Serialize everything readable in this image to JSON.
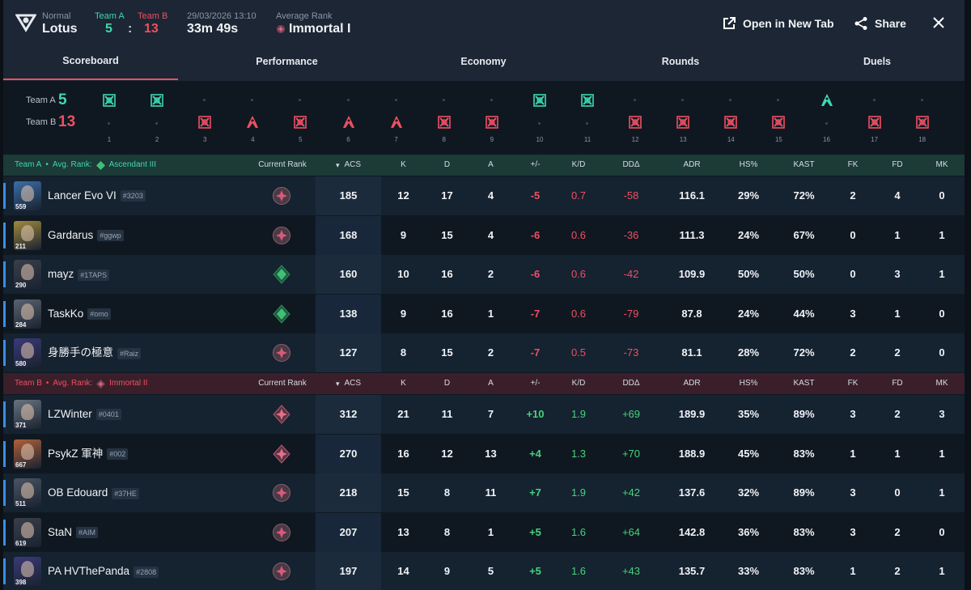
{
  "match": {
    "mode": "Normal",
    "map": "Lotus",
    "team_a_label": "Team A",
    "team_b_label": "Team B",
    "team_a_score": "5",
    "team_b_score": "13",
    "score_sep": ":",
    "datetime": "29/03/2026 13:10",
    "duration": "33m 49s",
    "avg_rank_label": "Average Rank",
    "avg_rank": "Immortal I"
  },
  "actions": {
    "open_tab": "Open in New Tab",
    "share": "Share"
  },
  "tabs": [
    "Scoreboard",
    "Performance",
    "Economy",
    "Rounds",
    "Duels"
  ],
  "timeline": {
    "team_a_label": "Team A",
    "team_b_label": "Team B",
    "team_a_score": "5",
    "team_b_score": "13",
    "rounds": [
      {
        "n": "1",
        "winner": "A",
        "type": "elim"
      },
      {
        "n": "2",
        "winner": "A",
        "type": "elim"
      },
      {
        "n": "3",
        "winner": "B",
        "type": "elim"
      },
      {
        "n": "4",
        "winner": "B",
        "type": "defuse"
      },
      {
        "n": "5",
        "winner": "B",
        "type": "elim"
      },
      {
        "n": "6",
        "winner": "B",
        "type": "defuse"
      },
      {
        "n": "7",
        "winner": "B",
        "type": "defuse"
      },
      {
        "n": "8",
        "winner": "B",
        "type": "elim"
      },
      {
        "n": "9",
        "winner": "B",
        "type": "elim"
      },
      {
        "n": "10",
        "winner": "A",
        "type": "elim"
      },
      {
        "n": "11",
        "winner": "A",
        "type": "elim"
      },
      {
        "n": "12",
        "winner": "B",
        "type": "elim"
      },
      {
        "n": "13",
        "winner": "B",
        "type": "elim"
      },
      {
        "n": "14",
        "winner": "B",
        "type": "elim"
      },
      {
        "n": "15",
        "winner": "B",
        "type": "elim"
      },
      {
        "n": "16",
        "winner": "A",
        "type": "defuse"
      },
      {
        "n": "17",
        "winner": "B",
        "type": "elim"
      },
      {
        "n": "18",
        "winner": "B",
        "type": "elim"
      }
    ]
  },
  "columns": {
    "current_rank": "Current Rank",
    "acs": "ACS",
    "k": "K",
    "d": "D",
    "a": "A",
    "pm": "+/-",
    "kd": "K/D",
    "dd": "DDΔ",
    "adr": "ADR",
    "hs": "HS%",
    "kast": "KAST",
    "fk": "FK",
    "fd": "FD",
    "mk": "MK"
  },
  "team_a": {
    "label": "Team A",
    "sep": "•",
    "avg_rank_label": "Avg. Rank:",
    "avg_rank": "Ascendant III",
    "color": "#3dd9b0",
    "players": [
      {
        "name": "Lancer Evo VI",
        "tag": "#3203",
        "level": "559",
        "rank": "immortal",
        "acs": "185",
        "k": "12",
        "d": "17",
        "a": "4",
        "pm": "-5",
        "kd": "0.7",
        "dd": "-58",
        "adr": "116.1",
        "hs": "29%",
        "kast": "72%",
        "fk": "2",
        "fd": "4",
        "mk": "0",
        "avatar": "#3b6ea8"
      },
      {
        "name": "Gardarus",
        "tag": "#ggwp",
        "level": "211",
        "rank": "immortal",
        "acs": "168",
        "k": "9",
        "d": "15",
        "a": "4",
        "pm": "-6",
        "kd": "0.6",
        "dd": "-36",
        "adr": "111.3",
        "hs": "24%",
        "kast": "67%",
        "fk": "0",
        "fd": "1",
        "mk": "1",
        "avatar": "#a08a3c"
      },
      {
        "name": "mayz",
        "tag": "#1TAPS",
        "level": "290",
        "rank": "ascendant",
        "acs": "160",
        "k": "10",
        "d": "16",
        "a": "2",
        "pm": "-6",
        "kd": "0.6",
        "dd": "-42",
        "adr": "109.9",
        "hs": "50%",
        "kast": "50%",
        "fk": "0",
        "fd": "3",
        "mk": "1",
        "avatar": "#3a3f4a"
      },
      {
        "name": "TaskKo",
        "tag": "#omo",
        "level": "284",
        "rank": "ascendant",
        "acs": "138",
        "k": "9",
        "d": "16",
        "a": "1",
        "pm": "-7",
        "kd": "0.6",
        "dd": "-79",
        "adr": "87.8",
        "hs": "24%",
        "kast": "44%",
        "fk": "3",
        "fd": "1",
        "mk": "0",
        "avatar": "#5a6470"
      },
      {
        "name": "身勝手の極意",
        "tag": "#Raiz",
        "level": "580",
        "rank": "immortal",
        "acs": "127",
        "k": "8",
        "d": "15",
        "a": "2",
        "pm": "-7",
        "kd": "0.5",
        "dd": "-73",
        "adr": "81.1",
        "hs": "28%",
        "kast": "72%",
        "fk": "2",
        "fd": "2",
        "mk": "0",
        "avatar": "#3a3a78"
      }
    ]
  },
  "team_b": {
    "label": "Team B",
    "sep": "•",
    "avg_rank_label": "Avg. Rank:",
    "avg_rank": "Immortal II",
    "color": "#ef4f62",
    "players": [
      {
        "name": "LZWinter",
        "tag": "#0401",
        "level": "371",
        "rank": "immortal2",
        "acs": "312",
        "k": "21",
        "d": "11",
        "a": "7",
        "pm": "+10",
        "kd": "1.9",
        "dd": "+69",
        "adr": "189.9",
        "hs": "35%",
        "kast": "89%",
        "fk": "3",
        "fd": "2",
        "mk": "3",
        "avatar": "#6a7480"
      },
      {
        "name": "PsykZ 軍神",
        "tag": "#002",
        "level": "667",
        "rank": "immortal2",
        "acs": "270",
        "k": "16",
        "d": "12",
        "a": "13",
        "pm": "+4",
        "kd": "1.3",
        "dd": "+70",
        "adr": "188.9",
        "hs": "45%",
        "kast": "83%",
        "fk": "1",
        "fd": "1",
        "mk": "1",
        "avatar": "#b0603a"
      },
      {
        "name": "OB Edouard",
        "tag": "#37HE",
        "level": "511",
        "rank": "immortal",
        "acs": "218",
        "k": "15",
        "d": "8",
        "a": "11",
        "pm": "+7",
        "kd": "1.9",
        "dd": "+42",
        "adr": "137.6",
        "hs": "32%",
        "kast": "89%",
        "fk": "3",
        "fd": "0",
        "mk": "1",
        "avatar": "#4a5462"
      },
      {
        "name": "StaN",
        "tag": "#AIM",
        "level": "619",
        "rank": "immortal",
        "acs": "207",
        "k": "13",
        "d": "8",
        "a": "1",
        "pm": "+5",
        "kd": "1.6",
        "dd": "+64",
        "adr": "142.8",
        "hs": "36%",
        "kast": "83%",
        "fk": "3",
        "fd": "2",
        "mk": "0",
        "avatar": "#3a3f4a"
      },
      {
        "name": "PA HVThePanda",
        "tag": "#2808",
        "level": "398",
        "rank": "immortal",
        "acs": "197",
        "k": "14",
        "d": "9",
        "a": "5",
        "pm": "+5",
        "kd": "1.6",
        "dd": "+43",
        "adr": "135.7",
        "hs": "33%",
        "kast": "83%",
        "fk": "1",
        "fd": "2",
        "mk": "1",
        "avatar": "#3a3a78"
      }
    ]
  }
}
